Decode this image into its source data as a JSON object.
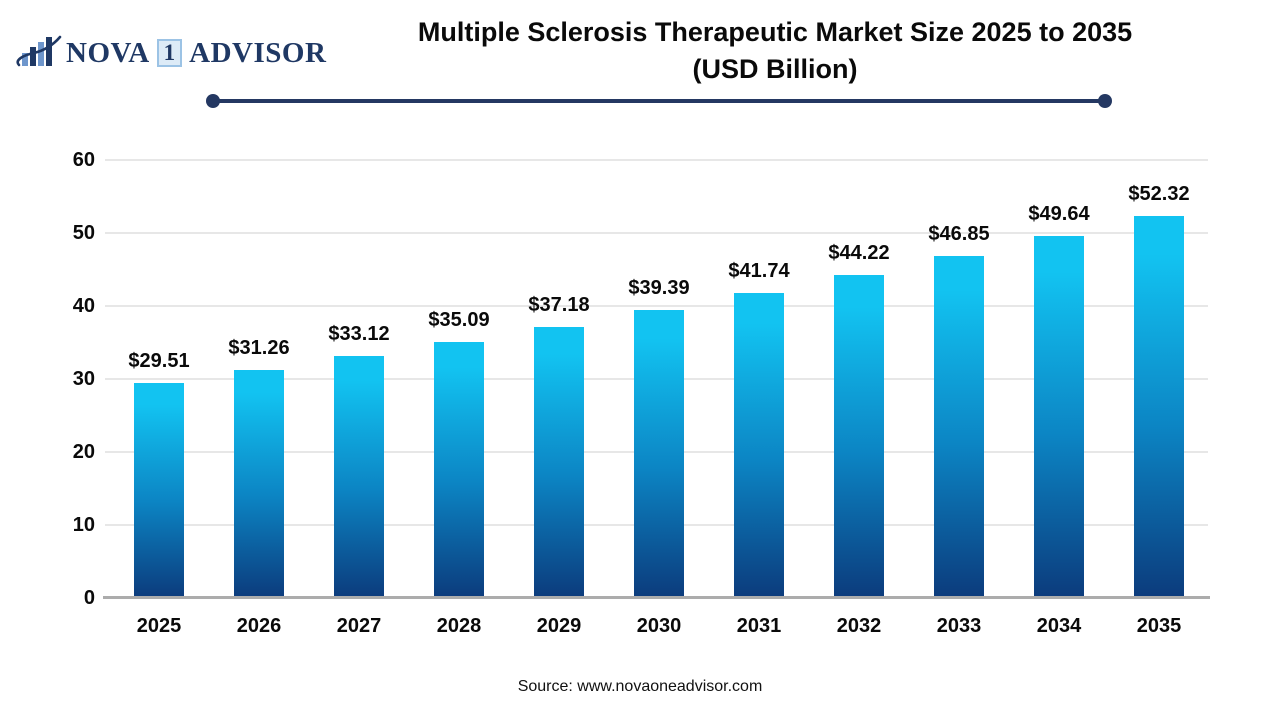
{
  "brand": {
    "name_part1": "NOVA",
    "name_boxed": "1",
    "name_part2": "ADVISOR",
    "navy": "#1F3864",
    "box_fill": "#DDEBF7",
    "box_border": "#9CC3E5"
  },
  "title": {
    "line1": "Multiple Sclerosis Therapeutic Market Size 2025 to 2035",
    "line2": "(USD Billion)"
  },
  "source": "Source: www.novaoneadvisor.com",
  "chart_data": {
    "type": "bar",
    "title": "Multiple Sclerosis Therapeutic Market Size 2025 to 2035 (USD Billion)",
    "categories": [
      "2025",
      "2026",
      "2027",
      "2028",
      "2029",
      "2030",
      "2031",
      "2032",
      "2033",
      "2034",
      "2035"
    ],
    "values": [
      29.51,
      31.26,
      33.12,
      35.09,
      37.18,
      39.39,
      41.74,
      44.22,
      46.85,
      49.64,
      52.32
    ],
    "labels": [
      "$29.51",
      "$31.26",
      "$33.12",
      "$35.09",
      "$37.18",
      "$39.39",
      "$41.74",
      "$44.22",
      "$46.85",
      "$49.64",
      "$52.32"
    ],
    "xlabel": "",
    "ylabel": "",
    "ylim": [
      0,
      60
    ],
    "yticks": [
      0,
      10,
      20,
      30,
      40,
      50,
      60
    ],
    "grid": true,
    "legend": false,
    "bar_color_top": "#12C3F1",
    "bar_color_mid": "#0C85C4",
    "bar_color_bottom": "#0C3B7C",
    "gridline_color": "#E7E7E7",
    "axis_line_color": "#ACACAC"
  }
}
